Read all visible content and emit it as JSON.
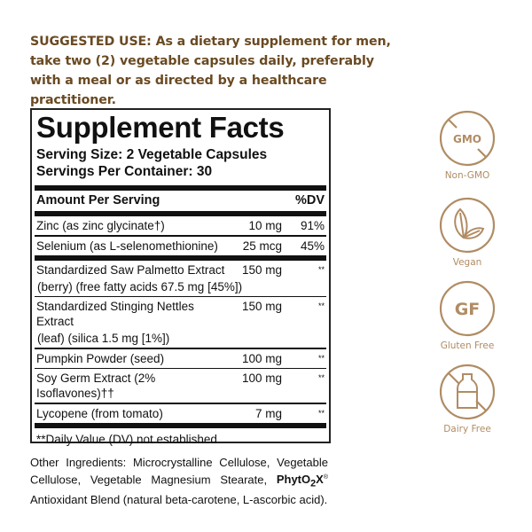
{
  "suggested_use": {
    "label": "SUGGESTED USE:",
    "text": " As a dietary supplement for men, take two (2) vegetable capsules daily, preferably with a meal or as directed by a healthcare practitioner."
  },
  "facts": {
    "title": "Supplement Facts",
    "serving_size": "Serving Size: 2 Vegetable Capsules",
    "servings_per_container": "Servings Per Container: 30",
    "amount_header": "Amount Per Serving",
    "dv_header": "%DV",
    "rows": [
      {
        "name": "Zinc (as zinc glycinate†)",
        "sub": "",
        "amount": "10 mg",
        "dv": "91%"
      },
      {
        "name": "Selenium (as L-selenomethionine)",
        "sub": "",
        "amount": "25 mcg",
        "dv": "45%"
      },
      {
        "name": "Standardized Saw Palmetto Extract",
        "sub": "(berry) (free fatty acids 67.5 mg [45%])",
        "amount": "150 mg",
        "dv": "**"
      },
      {
        "name": "Standardized Stinging Nettles Extract",
        "sub": "(leaf) (silica 1.5 mg [1%])",
        "amount": "150 mg",
        "dv": "**"
      },
      {
        "name": "Pumpkin Powder (seed)",
        "sub": "",
        "amount": "100 mg",
        "dv": "**"
      },
      {
        "name": "Soy Germ Extract (2% Isoflavones)††",
        "sub": "",
        "amount": "100 mg",
        "dv": "**"
      },
      {
        "name": "Lycopene (from tomato)",
        "sub": "",
        "amount": "7 mg",
        "dv": "**"
      }
    ],
    "footnote": "**Daily Value (DV) not established"
  },
  "other_ingredients": {
    "text": "Other Ingredients: Microcrystalline Cellulose, Vegetable Cellulose, Vegetable Magnesium Stearate, ",
    "brand": "PhytO",
    "brand_sub": "2",
    "brand_end": "X",
    "reg": "®",
    "text2": " Antioxidant Blend (natural beta-carotene, L-ascorbic acid)."
  },
  "badges": [
    {
      "label": "Non-GMO",
      "icon": "gmo-crossed-icon",
      "text": "GMO"
    },
    {
      "label": "Vegan",
      "icon": "leaves-icon"
    },
    {
      "label": "Gluten Free",
      "icon": "gf-icon",
      "text": "GF"
    },
    {
      "label": "Dairy Free",
      "icon": "milk-bottle-crossed-icon"
    }
  ],
  "colors": {
    "brand_brown": "#6a4a22",
    "badge_tan": "#b08c64"
  }
}
